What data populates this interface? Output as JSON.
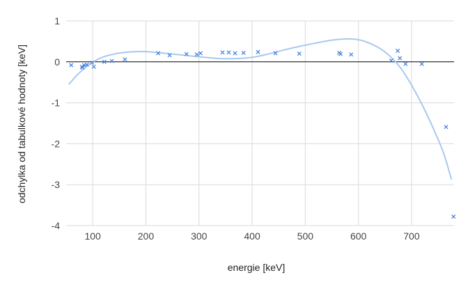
{
  "chart_data": {
    "type": "scatter",
    "title": "",
    "xlabel": "energie [keV]",
    "ylabel": "odchylka od tabulkové hodnoty [keV]",
    "xlim": [
      50,
      780
    ],
    "ylim": [
      -4,
      1
    ],
    "x_ticks": [
      100,
      200,
      300,
      400,
      500,
      600,
      700
    ],
    "y_ticks": [
      1,
      0,
      -1,
      -2,
      -3,
      -4
    ],
    "grid": true,
    "legend": "none",
    "series": [
      {
        "values_type": "points",
        "color": "#3f7fe0",
        "marker": "x",
        "points": [
          [
            59.5,
            -0.08
          ],
          [
            79.6,
            -0.12
          ],
          [
            81.0,
            -0.14
          ],
          [
            84.0,
            -0.08
          ],
          [
            89.0,
            -0.07
          ],
          [
            99.0,
            -0.02
          ],
          [
            102.0,
            -0.12
          ],
          [
            121.8,
            0.0
          ],
          [
            136.0,
            0.02
          ],
          [
            160.6,
            0.06
          ],
          [
            223.2,
            0.21
          ],
          [
            244.7,
            0.16
          ],
          [
            276.4,
            0.19
          ],
          [
            295.9,
            0.18
          ],
          [
            302.9,
            0.21
          ],
          [
            344.3,
            0.23
          ],
          [
            356.0,
            0.23
          ],
          [
            367.8,
            0.21
          ],
          [
            383.8,
            0.22
          ],
          [
            411.1,
            0.24
          ],
          [
            443.9,
            0.21
          ],
          [
            488.7,
            0.2
          ],
          [
            564.0,
            0.22
          ],
          [
            566.4,
            0.19
          ],
          [
            586.3,
            0.18
          ],
          [
            661.7,
            0.03
          ],
          [
            674.0,
            0.27
          ],
          [
            678.0,
            0.09
          ],
          [
            688.7,
            -0.05
          ],
          [
            719.3,
            -0.05
          ],
          [
            764.9,
            -1.59
          ],
          [
            778.9,
            -3.78
          ]
        ]
      },
      {
        "values_type": "trendline",
        "color": "#a9c8ef",
        "points": [
          [
            55,
            -0.55
          ],
          [
            70,
            -0.33
          ],
          [
            85,
            -0.15
          ],
          [
            100,
            -0.01
          ],
          [
            120,
            0.12
          ],
          [
            140,
            0.19
          ],
          [
            160,
            0.23
          ],
          [
            180,
            0.25
          ],
          [
            200,
            0.25
          ],
          [
            220,
            0.23
          ],
          [
            250,
            0.19
          ],
          [
            280,
            0.15
          ],
          [
            310,
            0.11
          ],
          [
            340,
            0.08
          ],
          [
            370,
            0.08
          ],
          [
            400,
            0.11
          ],
          [
            430,
            0.19
          ],
          [
            460,
            0.29
          ],
          [
            490,
            0.38
          ],
          [
            520,
            0.46
          ],
          [
            550,
            0.53
          ],
          [
            580,
            0.56
          ],
          [
            600,
            0.54
          ],
          [
            620,
            0.46
          ],
          [
            640,
            0.33
          ],
          [
            660,
            0.13
          ],
          [
            680,
            -0.16
          ],
          [
            700,
            -0.57
          ],
          [
            720,
            -1.05
          ],
          [
            740,
            -1.6
          ],
          [
            760,
            -2.22
          ],
          [
            775,
            -2.87
          ]
        ]
      }
    ]
  }
}
